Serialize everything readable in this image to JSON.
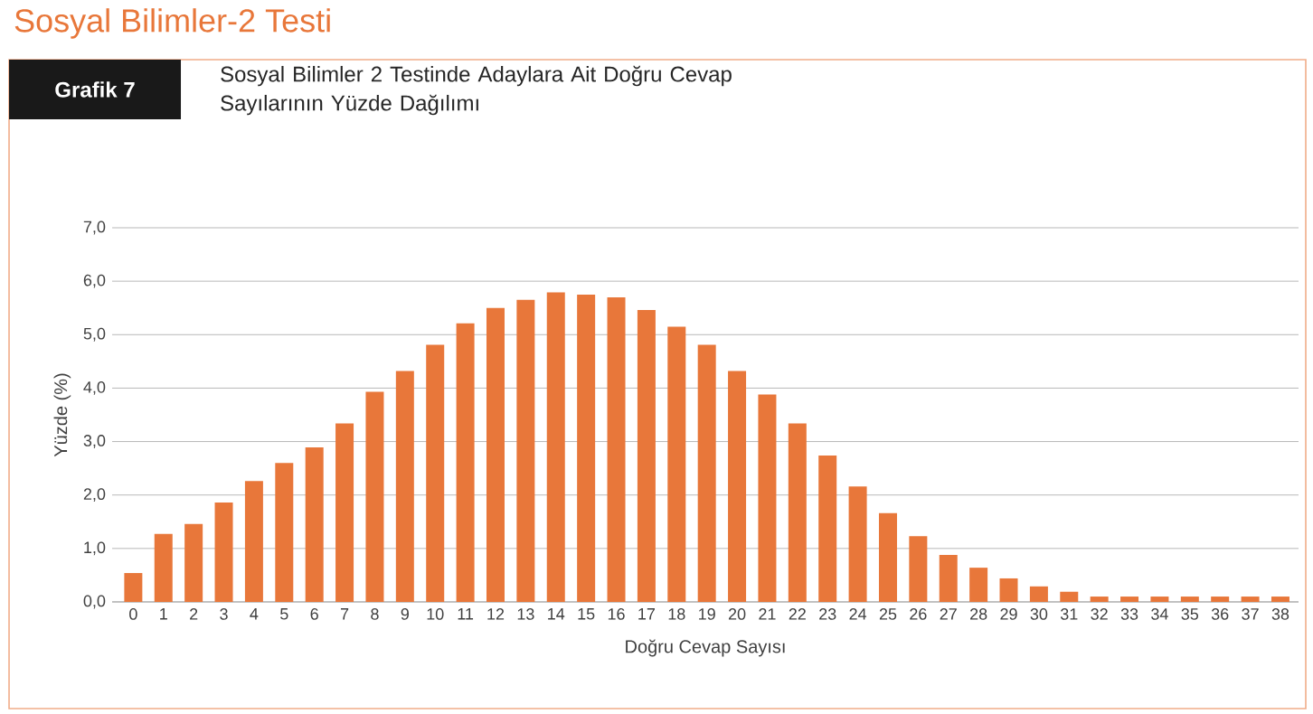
{
  "chart_data": {
    "type": "bar",
    "title": "Sosyal Bilimler-2 Testi",
    "subtitle": "Sosyal Bilimler 2 Testinde Adaylara Ait Doğru Cevap Sayılarının Yüzde Dağılımı",
    "annotations": [
      "Grafik 7"
    ],
    "xlabel": "Doğru Cevap Sayısı",
    "ylabel": "Yüzde (%)",
    "categories": [
      "0",
      "1",
      "2",
      "3",
      "4",
      "5",
      "6",
      "7",
      "8",
      "9",
      "10",
      "11",
      "12",
      "13",
      "14",
      "15",
      "16",
      "17",
      "18",
      "19",
      "20",
      "21",
      "22",
      "23",
      "24",
      "25",
      "26",
      "27",
      "28",
      "29",
      "30",
      "31",
      "32",
      "33",
      "34",
      "35",
      "36",
      "37",
      "38"
    ],
    "values": [
      0.54,
      1.27,
      1.46,
      1.86,
      2.26,
      2.6,
      2.89,
      3.34,
      3.93,
      4.32,
      4.81,
      5.21,
      5.5,
      5.65,
      5.79,
      5.75,
      5.7,
      5.46,
      5.15,
      4.81,
      4.32,
      3.88,
      3.34,
      2.74,
      2.16,
      1.66,
      1.23,
      0.88,
      0.64,
      0.44,
      0.29,
      0.19,
      0.1,
      0.1,
      0.1,
      0.1,
      0.1,
      0.1,
      0.1
    ],
    "color": "#e8773a",
    "ylim": [
      0,
      7
    ],
    "yticks": [
      {
        "value": 0,
        "label": "0,0"
      },
      {
        "value": 1,
        "label": "1,0"
      },
      {
        "value": 2,
        "label": "2,0"
      },
      {
        "value": 3,
        "label": "3,0"
      },
      {
        "value": 4,
        "label": "4,0"
      },
      {
        "value": 5,
        "label": "5,0"
      },
      {
        "value": 6,
        "label": "6,0"
      },
      {
        "value": 7,
        "label": "7,0"
      }
    ],
    "grid": "y"
  }
}
